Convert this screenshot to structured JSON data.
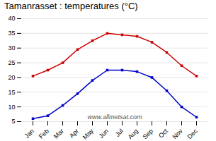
{
  "chart_data": {
    "type": "line",
    "title": "Tamanrasset : temperatures (°C)",
    "categories": [
      "Jan",
      "Feb",
      "Mar",
      "Apr",
      "May",
      "Jun",
      "Jul",
      "Aug",
      "Sep",
      "Oct",
      "Nov",
      "Dec"
    ],
    "series": [
      {
        "color": "#cc0000",
        "marker": "square",
        "values": [
          20.5,
          22.5,
          25.0,
          29.5,
          32.5,
          35.0,
          34.5,
          34.0,
          32.0,
          28.5,
          24.0,
          20.5
        ]
      },
      {
        "color": "#0000cc",
        "marker": "square",
        "values": [
          6.0,
          7.0,
          10.5,
          14.5,
          19.0,
          22.5,
          22.5,
          22.0,
          20.0,
          15.5,
          10.0,
          6.5
        ]
      }
    ],
    "ylim": [
      5,
      40
    ],
    "yticks": [
      5,
      10,
      15,
      20,
      25,
      30,
      35,
      40
    ],
    "grid": true,
    "annotations": [
      "www.allmetsat.com"
    ]
  }
}
